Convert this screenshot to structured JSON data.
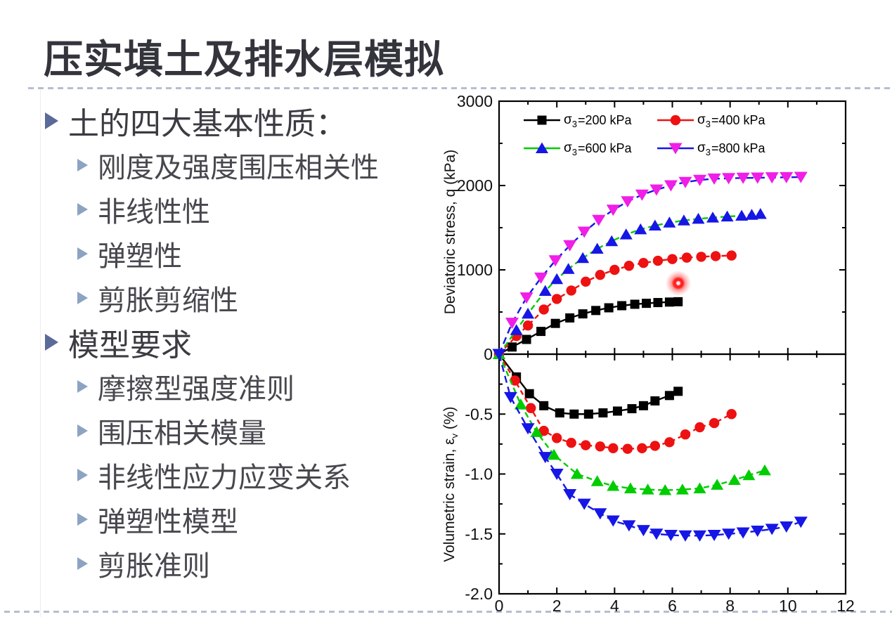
{
  "slide": {
    "title": "压实填土及排水层模拟",
    "bullets": [
      {
        "level": 1,
        "text": "土的四大基本性质："
      },
      {
        "level": 2,
        "text": "刚度及强度围压相关性"
      },
      {
        "level": 2,
        "text": "非线性性"
      },
      {
        "level": 2,
        "text": "弹塑性"
      },
      {
        "level": 2,
        "text": "剪胀剪缩性"
      },
      {
        "level": 1,
        "text": "模型要求"
      },
      {
        "level": 2,
        "text": "摩擦型强度准则"
      },
      {
        "level": 2,
        "text": "围压相关模量"
      },
      {
        "level": 2,
        "text": "非线性应力应变关系"
      },
      {
        "level": 2,
        "text": "弹塑性模型"
      },
      {
        "level": 2,
        "text": "剪胀准则"
      }
    ],
    "colors": {
      "bullet_level1_arrow": "#5a6a99",
      "bullet_level2_arrow": "#8da3c2",
      "divider_dash": "#b4bed1",
      "title_text": "#33343c",
      "laser_pointer": "#ff1f1f"
    }
  },
  "legend": {
    "items": [
      {
        "sigma": "σ",
        "sub": "3",
        "rest": "=200 kPa"
      },
      {
        "sigma": "σ",
        "sub": "3",
        "rest": "=400 kPa"
      },
      {
        "sigma": "σ",
        "sub": "3",
        "rest": "=600 kPa"
      },
      {
        "sigma": "σ",
        "sub": "3",
        "rest": "=800 kPa"
      }
    ]
  },
  "bottom_ylabel_parts": {
    "pre": "Volumetric strain, ",
    "sym": "ε",
    "sub": "v",
    "post": " (%)"
  },
  "chart_data": [
    {
      "type": "line",
      "name": "deviatoric-stress-chart",
      "ylabel": "Deviatoric stress, q (kPa)",
      "xlabel": "",
      "xlim": [
        0,
        12
      ],
      "ylim": [
        0,
        3000
      ],
      "grid": false,
      "legend_position": "inside top-left",
      "xticks": [
        0,
        2,
        4,
        6,
        8,
        10,
        12
      ],
      "xtick_labels": [
        "0",
        "2",
        "4",
        "6",
        "8",
        "10",
        "12"
      ],
      "xticks_minor": [
        1,
        3,
        5,
        7,
        9,
        11
      ],
      "yticks": [
        0,
        1000,
        2000,
        3000
      ],
      "ytick_labels": [
        "0",
        "1000",
        "2000",
        "3000"
      ],
      "yticks_minor": [
        500,
        1500,
        2500
      ],
      "show_xtick_labels": false,
      "series": [
        {
          "id": "200kPa",
          "name": "σ3=200 kPa",
          "marker": "square",
          "marker_color": "#000000",
          "line_color": "#000000",
          "dash": "",
          "x": [
            0,
            0.45,
            0.95,
            1.45,
            1.95,
            2.45,
            2.9,
            3.35,
            3.8,
            4.25,
            4.7,
            5.1,
            5.5,
            5.9,
            6.2
          ],
          "y": [
            0,
            85,
            175,
            270,
            365,
            430,
            478,
            518,
            550,
            575,
            592,
            603,
            612,
            618,
            622
          ]
        },
        {
          "id": "400kPa",
          "name": "σ3=400 kPa",
          "marker": "circle",
          "marker_color": "#ee1111",
          "line_color": "#ee1111",
          "dash": "7 5",
          "x": [
            0,
            0.6,
            1.0,
            1.55,
            2.0,
            2.5,
            3.0,
            3.5,
            4.0,
            4.5,
            5.0,
            5.5,
            6.0,
            6.5,
            7.0,
            7.5,
            8.05
          ],
          "y": [
            0,
            215,
            340,
            530,
            655,
            755,
            860,
            940,
            1000,
            1048,
            1082,
            1108,
            1128,
            1145,
            1155,
            1163,
            1170
          ]
        },
        {
          "id": "600kPa",
          "name": "σ3=600 kPa",
          "marker": "triangle-up",
          "marker_color": "#1616e6",
          "line_color": "#00cc00",
          "dash": "8 5",
          "x": [
            0,
            0.6,
            1.0,
            1.6,
            2.0,
            2.4,
            2.9,
            3.4,
            3.9,
            4.4,
            4.9,
            5.4,
            5.9,
            6.4,
            6.9,
            7.4,
            7.9,
            8.4,
            8.75,
            9.05
          ],
          "y": [
            0,
            285,
            480,
            750,
            890,
            1010,
            1140,
            1250,
            1340,
            1420,
            1480,
            1525,
            1560,
            1585,
            1605,
            1620,
            1632,
            1642,
            1652,
            1662
          ]
        },
        {
          "id": "800kPa",
          "name": "σ3=800 kPa",
          "marker": "triangle-down",
          "marker_color": "#f01ee6",
          "line_color": "#1616e6",
          "dash": "10 6",
          "x": [
            0,
            0.45,
            0.95,
            1.45,
            1.95,
            2.45,
            2.95,
            3.45,
            3.95,
            4.45,
            4.95,
            5.45,
            5.95,
            6.45,
            6.95,
            7.45,
            7.95,
            8.45,
            8.95,
            9.45,
            9.95,
            10.45
          ],
          "y": [
            0,
            370,
            670,
            905,
            1110,
            1290,
            1450,
            1590,
            1710,
            1810,
            1890,
            1950,
            2000,
            2040,
            2065,
            2080,
            2085,
            2090,
            2092,
            2095,
            2097,
            2100
          ]
        }
      ]
    },
    {
      "type": "line",
      "name": "volumetric-strain-chart",
      "ylabel": "Volumetric strain, εv (%)",
      "xlabel": "",
      "xlim": [
        0,
        12
      ],
      "ylim": [
        -2.0,
        0
      ],
      "grid": false,
      "xticks": [
        0,
        2,
        4,
        6,
        8,
        10,
        12
      ],
      "xtick_labels": [
        "0",
        "2",
        "4",
        "6",
        "8",
        "10",
        "12"
      ],
      "xticks_minor": [
        1,
        3,
        5,
        7,
        9,
        11
      ],
      "yticks": [
        -0.5,
        -1.0,
        -1.5,
        -2.0
      ],
      "ytick_labels": [
        "-0.5",
        "-1.0",
        "-1.5",
        "-2.0"
      ],
      "yticks_minor": [
        -0.25,
        -0.75,
        -1.25,
        -1.75
      ],
      "show_xtick_labels": true,
      "series": [
        {
          "id": "200kPa",
          "name": "σ3=200 kPa",
          "marker": "square",
          "marker_color": "#000000",
          "line_color": "#000000",
          "dash": "",
          "x": [
            0,
            0.6,
            1.05,
            1.55,
            2.1,
            2.6,
            3.1,
            3.6,
            4.1,
            4.6,
            5.0,
            5.4,
            5.9,
            6.2
          ],
          "y": [
            0,
            -0.19,
            -0.33,
            -0.43,
            -0.49,
            -0.5,
            -0.5,
            -0.49,
            -0.475,
            -0.455,
            -0.43,
            -0.39,
            -0.345,
            -0.31
          ]
        },
        {
          "id": "400kPa",
          "name": "σ3=400 kPa",
          "marker": "circle",
          "marker_color": "#ee1111",
          "line_color": "#ee1111",
          "dash": "7 5",
          "x": [
            0,
            0.55,
            1.1,
            1.55,
            2.0,
            2.5,
            3.0,
            3.5,
            3.95,
            4.45,
            4.95,
            5.4,
            5.9,
            6.45,
            6.95,
            7.45,
            8.05
          ],
          "y": [
            0,
            -0.22,
            -0.45,
            -0.64,
            -0.7,
            -0.74,
            -0.76,
            -0.77,
            -0.785,
            -0.79,
            -0.785,
            -0.765,
            -0.735,
            -0.67,
            -0.61,
            -0.575,
            -0.5
          ]
        },
        {
          "id": "600kPa",
          "name": "σ3=600 kPa",
          "marker": "triangle-up",
          "marker_color": "#00cc00",
          "line_color": "#00cc00",
          "dash": "8 5",
          "x": [
            0,
            0.75,
            1.3,
            1.9,
            2.7,
            3.4,
            3.95,
            4.55,
            5.15,
            5.75,
            6.35,
            6.95,
            7.55,
            8.15,
            8.65,
            9.2
          ],
          "y": [
            0,
            -0.42,
            -0.65,
            -0.84,
            -1.0,
            -1.06,
            -1.1,
            -1.12,
            -1.13,
            -1.135,
            -1.13,
            -1.12,
            -1.09,
            -1.05,
            -1.01,
            -0.97
          ]
        },
        {
          "id": "800kPa",
          "name": "σ3=800 kPa",
          "marker": "triangle-down",
          "marker_color": "#1616e6",
          "line_color": "#1616e6",
          "dash": "10 6",
          "x": [
            0,
            0.4,
            1.0,
            1.6,
            2.0,
            2.45,
            2.95,
            3.5,
            3.95,
            4.5,
            5.0,
            5.45,
            5.95,
            6.45,
            6.95,
            7.45,
            7.95,
            8.45,
            8.95,
            9.45,
            9.95,
            10.45
          ],
          "y": [
            0,
            -0.36,
            -0.62,
            -0.86,
            -1.0,
            -1.17,
            -1.25,
            -1.33,
            -1.39,
            -1.43,
            -1.47,
            -1.5,
            -1.51,
            -1.515,
            -1.515,
            -1.51,
            -1.5,
            -1.49,
            -1.475,
            -1.46,
            -1.44,
            -1.4
          ]
        }
      ]
    }
  ]
}
